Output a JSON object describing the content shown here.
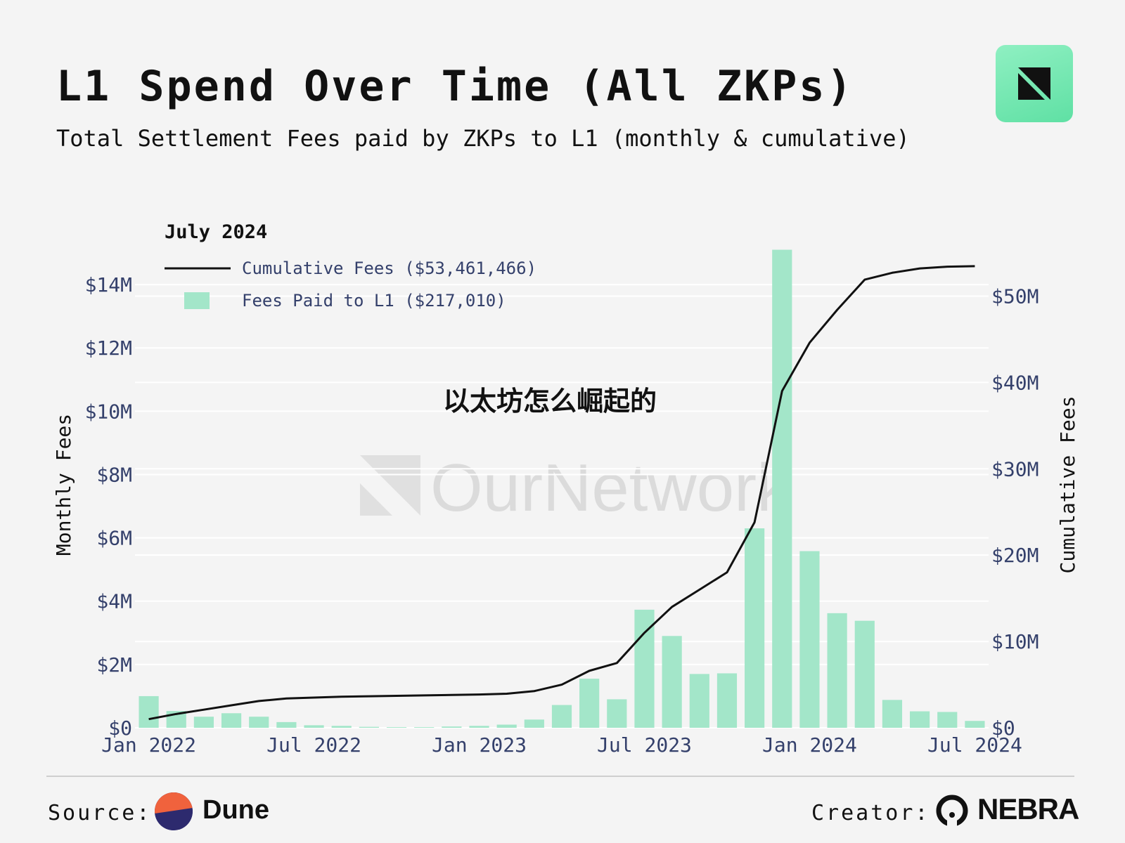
{
  "header": {
    "title": "L1 Spend Over Time (All ZKPs)",
    "subtitle": "Total Settlement Fees paid by ZKPs to L1 (monthly & cumulative)"
  },
  "overlay_text": "以太坊怎么崛起的",
  "watermark": "OurNetwork",
  "footer": {
    "source_label": "Source:",
    "source_name": "Dune",
    "creator_label": "Creator:",
    "creator_name": "NEBRA"
  },
  "colors": {
    "bar": "#a3e6c9",
    "line": "#111111",
    "background": "#f4f4f4",
    "accent": "#6fe8ac"
  },
  "chart_data": {
    "type": "bar",
    "legend_title": "July 2024",
    "legend_placement": "top-left",
    "grid": true,
    "categories": [
      "Jan 2022",
      "Feb 2022",
      "Mar 2022",
      "Apr 2022",
      "May 2022",
      "Jun 2022",
      "Jul 2022",
      "Aug 2022",
      "Sep 2022",
      "Oct 2022",
      "Nov 2022",
      "Dec 2022",
      "Jan 2023",
      "Feb 2023",
      "Mar 2023",
      "Apr 2023",
      "May 2023",
      "Jun 2023",
      "Jul 2023",
      "Aug 2023",
      "Sep 2023",
      "Oct 2023",
      "Nov 2023",
      "Dec 2023",
      "Jan 2024",
      "Feb 2024",
      "Mar 2024",
      "Apr 2024",
      "May 2024",
      "Jun 2024",
      "Jul 2024"
    ],
    "x_ticks": [
      "Jan 2022",
      "Jul 2022",
      "Jan 2023",
      "Jul 2023",
      "Jan 2024",
      "Jul 2024"
    ],
    "series": [
      {
        "name": "Fees Paid to L1 ($217,010)",
        "type": "bar",
        "axis": "left",
        "values": [
          1000000,
          530000,
          350000,
          460000,
          350000,
          180000,
          80000,
          60000,
          30000,
          20000,
          20000,
          40000,
          60000,
          100000,
          260000,
          720000,
          1550000,
          900000,
          3730000,
          2900000,
          1700000,
          1720000,
          6300000,
          15100000,
          5580000,
          3620000,
          3380000,
          880000,
          520000,
          500000,
          217010
        ]
      },
      {
        "name": "Cumulative Fees ($53,461,466)",
        "type": "line",
        "axis": "right",
        "values": [
          1000000,
          1600000,
          2100000,
          2600000,
          3100000,
          3400000,
          3500000,
          3600000,
          3650000,
          3700000,
          3750000,
          3800000,
          3850000,
          3950000,
          4250000,
          5000000,
          6600000,
          7500000,
          11000000,
          14000000,
          16000000,
          18000000,
          23800000,
          39000000,
          44600000,
          48400000,
          51900000,
          52700000,
          53200000,
          53400000,
          53461466
        ]
      }
    ],
    "y_left": {
      "label": "Monthly Fees",
      "range": [
        0,
        15000000
      ],
      "ticks": [
        "$0",
        "$2M",
        "$4M",
        "$6M",
        "$8M",
        "$10M",
        "$12M",
        "$14M"
      ]
    },
    "y_right": {
      "label": "Cumulative Fees",
      "range": [
        0,
        55000000
      ],
      "ticks": [
        "$0",
        "$10M",
        "$20M",
        "$30M",
        "$40M",
        "$50M"
      ]
    }
  }
}
